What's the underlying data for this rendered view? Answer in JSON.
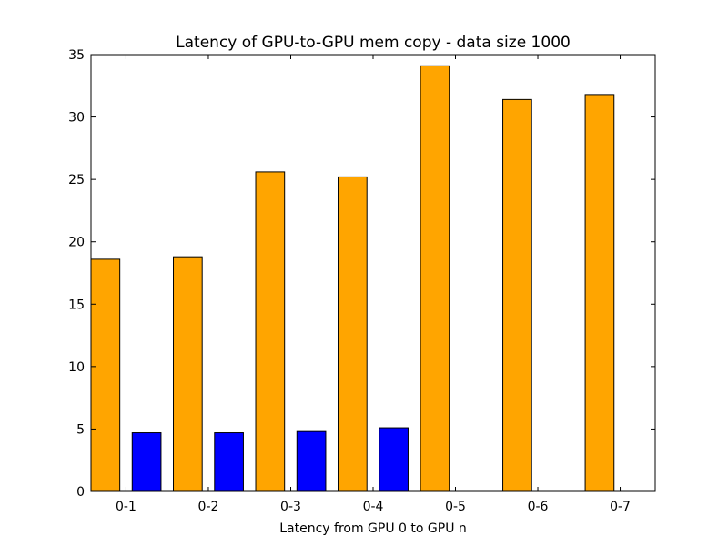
{
  "chart_data": {
    "type": "bar",
    "title": "Latency of GPU-to-GPU mem copy - data size 1000",
    "xlabel": "Latency from GPU 0 to GPU n",
    "ylabel": "",
    "categories": [
      "0-1",
      "0-2",
      "0-3",
      "0-4",
      "0-5",
      "0-6",
      "0-7"
    ],
    "ylim": [
      0,
      35
    ],
    "yticks": [
      "0",
      "5",
      "10",
      "15",
      "20",
      "25",
      "30",
      "35"
    ],
    "grid": false,
    "series": [
      {
        "color": "#ffa500",
        "values": [
          18.6,
          18.8,
          25.6,
          25.2,
          34.1,
          31.4,
          31.8
        ]
      },
      {
        "color": "#0000ff",
        "values": [
          4.7,
          4.7,
          4.8,
          5.1,
          0,
          0,
          0
        ]
      }
    ]
  }
}
